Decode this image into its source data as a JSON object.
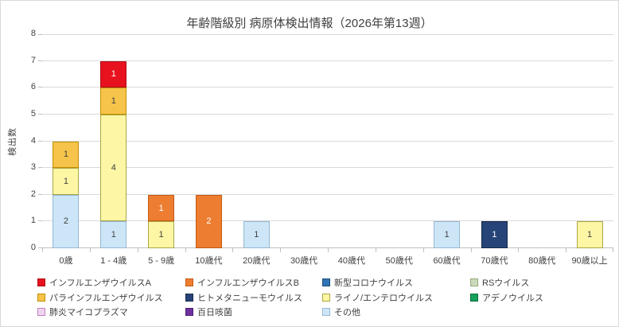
{
  "chart_data": {
    "type": "bar",
    "stacked": true,
    "title": "年齢階級別 病原体検出情報（2026年第13週）",
    "ylabel": "検出数",
    "xlabel": "",
    "ylim": [
      0,
      8
    ],
    "yticks": [
      0,
      1,
      2,
      3,
      4,
      5,
      6,
      7,
      8
    ],
    "grid": true,
    "legend_position": "bottom",
    "stack_order": "last-listed-series-at-bottom",
    "categories": [
      "0歳",
      "1 - 4歳",
      "5 - 9歳",
      "10歳代",
      "20歳代",
      "30歳代",
      "40歳代",
      "50歳代",
      "60歳代",
      "70歳代",
      "80歳代",
      "90歳以上"
    ],
    "series": [
      {
        "name": "インフルエンザウイルスA",
        "color": "#e8121e",
        "border": "#aa0e17",
        "label_color": "#ffffff",
        "values": [
          0,
          1,
          0,
          0,
          0,
          0,
          0,
          0,
          0,
          0,
          0,
          0
        ]
      },
      {
        "name": "インフルエンザウイルスB",
        "color": "#ed7d31",
        "border": "#c55a11",
        "label_color": "#ffffff",
        "values": [
          0,
          0,
          1,
          2,
          0,
          0,
          0,
          0,
          0,
          0,
          0,
          0
        ]
      },
      {
        "name": "新型コロナウイルス",
        "color": "#2e75b6",
        "border": "#1f4e79",
        "label_color": "#ffffff",
        "values": [
          0,
          0,
          0,
          0,
          0,
          0,
          0,
          0,
          0,
          0,
          0,
          0
        ]
      },
      {
        "name": "RSウイルス",
        "color": "#cbd9bb",
        "border": "#93a97e",
        "label_color": "#404040",
        "values": [
          0,
          0,
          0,
          0,
          0,
          0,
          0,
          0,
          0,
          0,
          0,
          0
        ]
      },
      {
        "name": "パラインフルエンザウイルス",
        "color": "#f6c44a",
        "border": "#bf8f00",
        "label_color": "#404040",
        "values": [
          1,
          1,
          0,
          0,
          0,
          0,
          0,
          0,
          0,
          0,
          0,
          0
        ]
      },
      {
        "name": "ヒトメタニューモウイルス",
        "color": "#264478",
        "border": "#17294a",
        "label_color": "#ffffff",
        "values": [
          0,
          0,
          0,
          0,
          0,
          0,
          0,
          0,
          0,
          1,
          0,
          0
        ]
      },
      {
        "name": "ライノ/エンテロウイルス",
        "color": "#fcf6a5",
        "border": "#aba646",
        "label_color": "#404040",
        "values": [
          1,
          4,
          1,
          0,
          0,
          0,
          0,
          0,
          0,
          0,
          0,
          1
        ]
      },
      {
        "name": "アデノウイルス",
        "color": "#17a15b",
        "border": "#0e6e3d",
        "label_color": "#ffffff",
        "values": [
          0,
          0,
          0,
          0,
          0,
          0,
          0,
          0,
          0,
          0,
          0,
          0
        ]
      },
      {
        "name": "肺炎マイコプラズマ",
        "color": "#f0d4ee",
        "border": "#c77fc4",
        "label_color": "#404040",
        "values": [
          0,
          0,
          0,
          0,
          0,
          0,
          0,
          0,
          0,
          0,
          0,
          0
        ]
      },
      {
        "name": "百日咳菌",
        "color": "#7030a0",
        "border": "#4e2170",
        "label_color": "#ffffff",
        "values": [
          0,
          0,
          0,
          0,
          0,
          0,
          0,
          0,
          0,
          0,
          0,
          0
        ]
      },
      {
        "name": "その他",
        "color": "#cde6f7",
        "border": "#94b7d3",
        "label_color": "#404040",
        "values": [
          2,
          1,
          0,
          0,
          1,
          0,
          0,
          0,
          1,
          0,
          0,
          0
        ]
      }
    ],
    "colors": {
      "gridline": "#d9d9d9",
      "axis": "#bfbfbf",
      "text": "#404040"
    }
  }
}
